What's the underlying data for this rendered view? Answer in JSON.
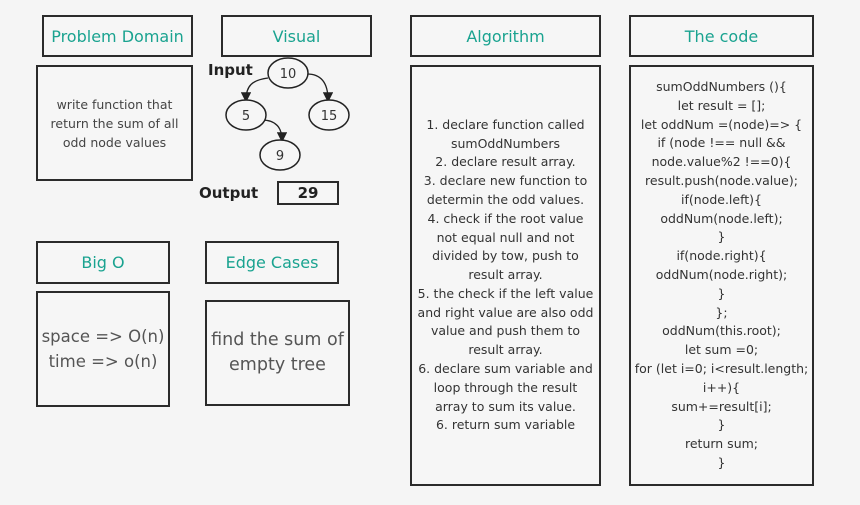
{
  "headers": {
    "problem_domain": "Problem Domain",
    "visual": "Visual",
    "algorithm": "Algorithm",
    "code": "The code",
    "big_o": "Big O",
    "edge_cases": "Edge Cases"
  },
  "problem_domain": {
    "lines": [
      "write function that",
      "return the sum of all",
      "odd node values"
    ]
  },
  "visual": {
    "input_label": "Input",
    "output_label": "Output",
    "output_value": "29",
    "nodes": {
      "root": "10",
      "left": "5",
      "right": "15",
      "left_right": "9"
    }
  },
  "big_o": {
    "lines": [
      "space => O(n)",
      "time => o(n)"
    ]
  },
  "edge_cases": {
    "lines": [
      "find the sum of",
      "empty tree"
    ]
  },
  "algorithm": {
    "lines": [
      "1. declare function called",
      "sumOddNumbers",
      "2. declare result array.",
      "3. declare new function to",
      "determin the odd values.",
      "4. check if the root value",
      "not equal null and not",
      "divided by tow, push to",
      "result array.",
      "5. the check if the left value",
      "and right value are also odd",
      "value and push them to",
      "result array.",
      "6. declare sum variable and",
      "loop through the result",
      "array to sum its value.",
      "6. return sum variable"
    ]
  },
  "code": {
    "lines": [
      "sumOddNumbers (){",
      "let result = [];",
      "let oddNum =(node)=> {",
      "if (node !== null &&",
      "node.value%2 !==0){",
      "result.push(node.value);",
      "if(node.left){",
      "oddNum(node.left);",
      "}",
      "if(node.right){",
      "oddNum(node.right);",
      "}",
      "};",
      "oddNum(this.root);",
      "let sum =0;",
      "for (let i=0; i<result.length;",
      "i++){",
      "sum+=result[i];",
      "}",
      "return sum;",
      "}"
    ]
  }
}
